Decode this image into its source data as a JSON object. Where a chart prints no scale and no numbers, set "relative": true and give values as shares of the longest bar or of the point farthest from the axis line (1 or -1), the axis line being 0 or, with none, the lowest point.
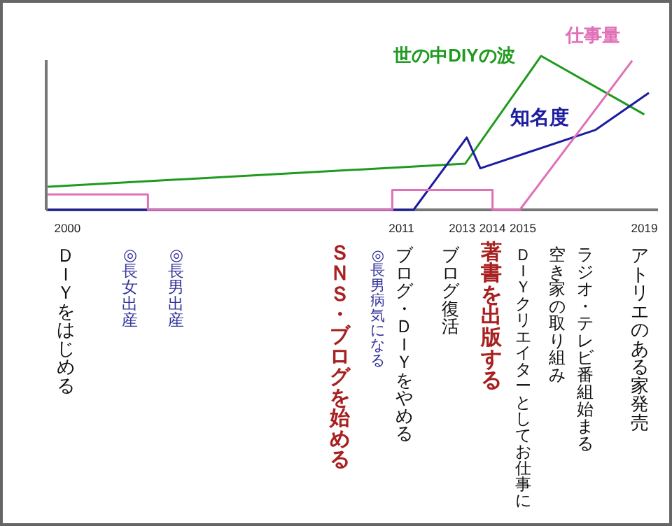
{
  "chart_data": {
    "type": "line",
    "relative": true,
    "xlim": [
      1999.3,
      2019.45
    ],
    "xticks": [
      2000,
      2011,
      2013,
      2014,
      2015,
      2019
    ],
    "series": [
      {
        "name": "世の中DIYの波",
        "color": "#1e9a1e",
        "x": [
          1999.35,
          2013.1,
          2015.6,
          2019
        ],
        "values": [
          0.15,
          0.3,
          1,
          0.62
        ]
      },
      {
        "name": "知名度",
        "color": "#1c1ca0",
        "x": [
          1999.35,
          2011.4,
          2013.15,
          2013.6,
          2017.4,
          2019.15
        ],
        "values": [
          0,
          0,
          0.47,
          0.27,
          0.52,
          0.76
        ]
      },
      {
        "name": "仕事量",
        "color": "#e070b8",
        "x": [
          1999.35,
          2002.65,
          2002.65,
          2010.7,
          2010.7,
          2014,
          2014,
          2014.9,
          2018.6
        ],
        "values": [
          0.1,
          0.1,
          0,
          0,
          0.13,
          0.13,
          0,
          0,
          0.97
        ]
      }
    ],
    "annotations": [
      "ＤＩＹをはじめる",
      "◎長女出産",
      "◎長男出産",
      "ＳＮＳ・ブログを始める",
      "◎長男病気になる",
      "ブログ・ＤＩＹをやめる",
      "ブログ復活",
      "著書を出版する",
      "ＤＩＹクリエイターとしてお仕事に",
      "空き家の取り組み",
      "ラジオ・テレビ番組始まる",
      "アトリエのある家発売"
    ]
  }
}
